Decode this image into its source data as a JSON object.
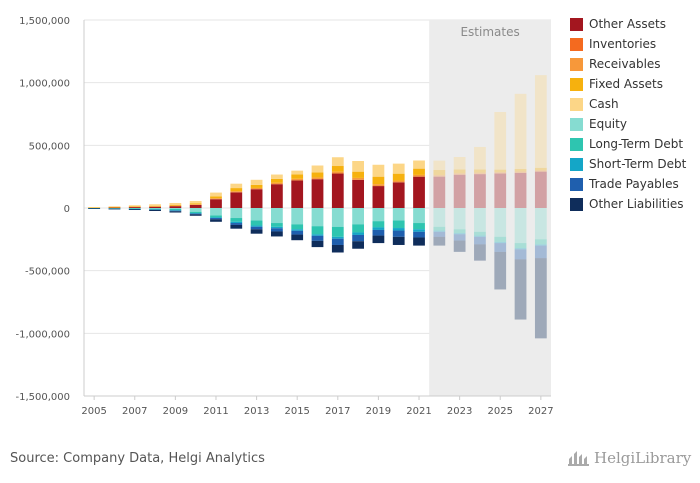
{
  "chart_data": {
    "type": "bar",
    "stacked": true,
    "categories": [
      "2005",
      "2006",
      "2007",
      "2008",
      "2009",
      "2010",
      "2011",
      "2012",
      "2013",
      "2014",
      "2015",
      "2016",
      "2017",
      "2018",
      "2019",
      "2020",
      "2021",
      "2022",
      "2023",
      "2024",
      "2025",
      "2026",
      "2027"
    ],
    "x_tick_labels": [
      "2005",
      "2007",
      "2009",
      "2011",
      "2013",
      "2015",
      "2017",
      "2019",
      "2021",
      "2023",
      "2025",
      "2027"
    ],
    "ylim": [
      -1500000,
      1500000
    ],
    "y_ticks": [
      1500000,
      1000000,
      500000,
      0,
      -500000,
      -1000000,
      -1500000
    ],
    "y_tick_labels": [
      "1,500,000",
      "1,000,000",
      "500,000",
      "0",
      "-500,000",
      "-1,000,000",
      "-1,500,000"
    ],
    "grid": true,
    "legend_position": "right",
    "estimates_label": "Estimates",
    "estimates_from": "2022",
    "assets": [
      {
        "name": "Other Assets",
        "color": "#a3161f",
        "values": [
          2000,
          5000,
          8000,
          10000,
          15000,
          25000,
          70000,
          125000,
          150000,
          190000,
          220000,
          230000,
          275000,
          225000,
          175000,
          205000,
          250000,
          250000,
          265000,
          270000,
          275000,
          280000,
          290000
        ]
      },
      {
        "name": "Inventories",
        "color": "#f46a1f",
        "values": [
          0,
          0,
          0,
          0,
          0,
          0,
          0,
          0,
          0,
          0,
          0,
          0,
          0,
          0,
          0,
          0,
          0,
          0,
          0,
          0,
          0,
          0,
          0
        ]
      },
      {
        "name": "Receivables",
        "color": "#f7983a",
        "values": [
          2000,
          2000,
          3000,
          4000,
          4000,
          5000,
          8000,
          9000,
          10000,
          12000,
          13000,
          14000,
          15000,
          15000,
          15000,
          14000,
          14000,
          13000,
          12000,
          12000,
          11000,
          11000,
          10000
        ]
      },
      {
        "name": "Fixed Assets",
        "color": "#f6b10e",
        "values": [
          1000,
          2000,
          3000,
          4000,
          5000,
          6000,
          15000,
          25000,
          25000,
          30000,
          35000,
          40000,
          45000,
          50000,
          60000,
          55000,
          50000,
          40000,
          30000,
          25000,
          20000,
          20000,
          20000
        ]
      },
      {
        "name": "Cash",
        "color": "#fcd687",
        "values": [
          2000,
          5000,
          8000,
          12000,
          16000,
          20000,
          30000,
          35000,
          40000,
          35000,
          30000,
          55000,
          70000,
          85000,
          95000,
          80000,
          65000,
          75000,
          100000,
          180000,
          460000,
          600000,
          740000
        ]
      }
    ],
    "liabilities": [
      {
        "name": "Equity",
        "color": "#86dcd1",
        "values": [
          -1000,
          -2000,
          -3000,
          -5000,
          -8000,
          -30000,
          -60000,
          -80000,
          -100000,
          -120000,
          -130000,
          -145000,
          -150000,
          -130000,
          -105000,
          -100000,
          -120000,
          -150000,
          -170000,
          -190000,
          -230000,
          -280000,
          -250000
        ]
      },
      {
        "name": "Long-Term Debt",
        "color": "#2ec5b0",
        "values": [
          -1000,
          -2000,
          -4000,
          -6000,
          -10000,
          -10000,
          -15000,
          -30000,
          -40000,
          -30000,
          -40000,
          -65000,
          -80000,
          -65000,
          -50000,
          -60000,
          -50000,
          -30000,
          -30000,
          -30000,
          -40000,
          -40000,
          -40000
        ]
      },
      {
        "name": "Short-Term Debt",
        "color": "#14a6c7",
        "values": [
          -500,
          -1000,
          -2000,
          -2000,
          -3000,
          -5000,
          -5000,
          -10000,
          -10000,
          -12000,
          -12000,
          -12000,
          -15000,
          -20000,
          -20000,
          -20000,
          -20000,
          -10000,
          -10000,
          -10000,
          -10000,
          -10000,
          -10000
        ]
      },
      {
        "name": "Trade Payables",
        "color": "#1f5fae",
        "values": [
          -500,
          -1000,
          -2000,
          -3000,
          -5000,
          -5000,
          -10000,
          -15000,
          -20000,
          -25000,
          -30000,
          -40000,
          -50000,
          -50000,
          -45000,
          -50000,
          -45000,
          -40000,
          -50000,
          -60000,
          -70000,
          -80000,
          -100000
        ]
      },
      {
        "name": "Other Liabilities",
        "color": "#0f2d5b",
        "values": [
          -1000,
          -3000,
          -5000,
          -8000,
          -10000,
          -12000,
          -20000,
          -30000,
          -35000,
          -40000,
          -45000,
          -50000,
          -60000,
          -60000,
          -60000,
          -65000,
          -65000,
          -70000,
          -90000,
          -130000,
          -300000,
          -480000,
          -640000
        ]
      }
    ]
  },
  "legend": [
    "Other Assets",
    "Inventories",
    "Receivables",
    "Fixed Assets",
    "Cash",
    "Equity",
    "Long-Term Debt",
    "Short-Term Debt",
    "Trade Payables",
    "Other Liabilities"
  ],
  "source": "Source: Company Data, Helgi Analytics",
  "logo": "HelgiLibrary"
}
